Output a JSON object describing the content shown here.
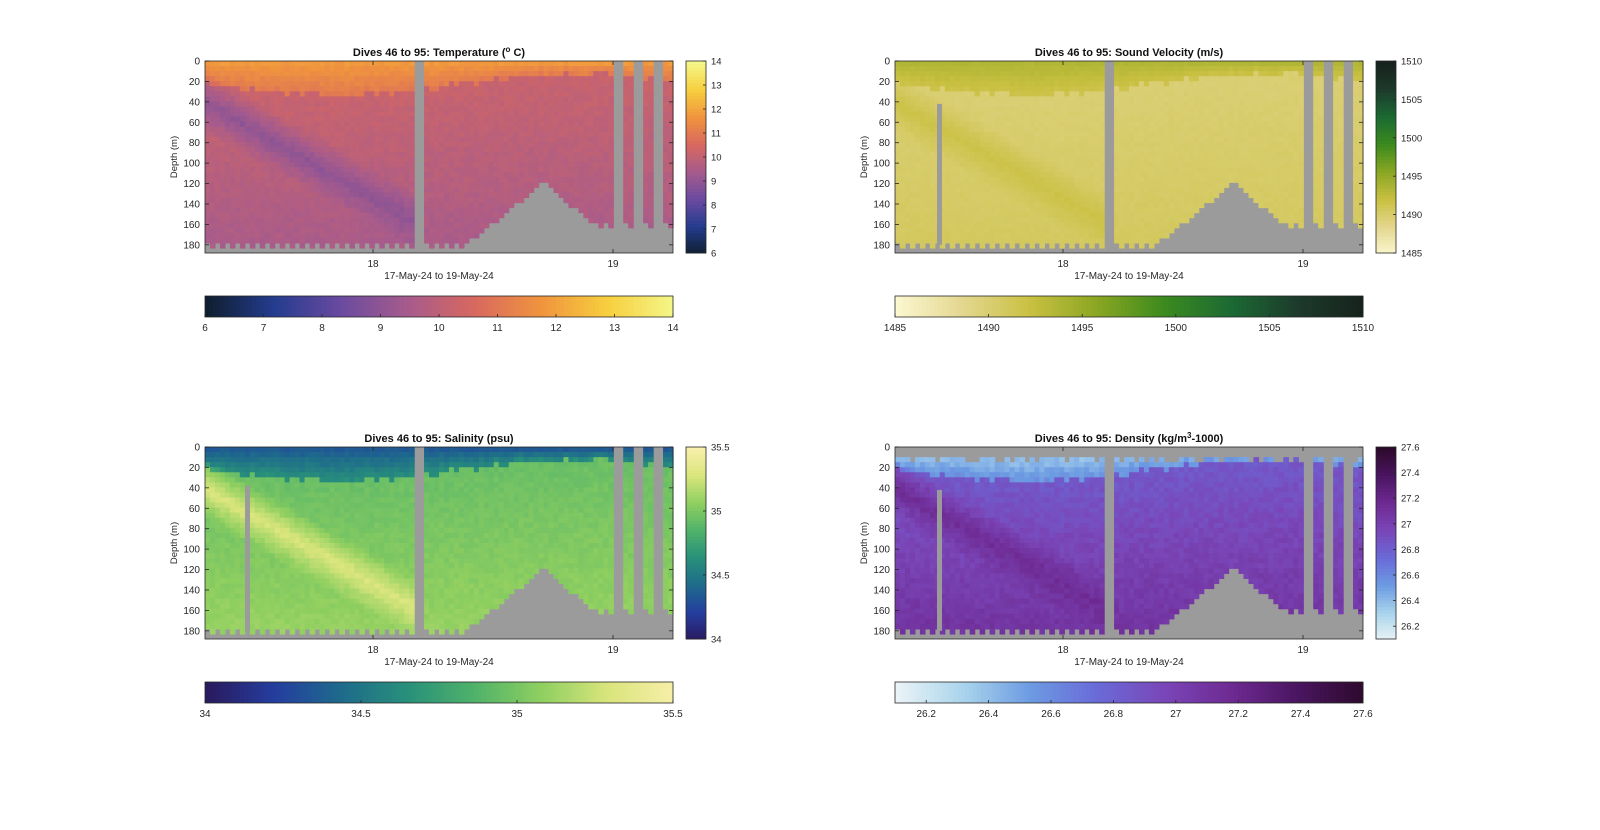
{
  "chart_data": [
    {
      "type": "heatmap",
      "title": "Dives 46 to 95: Temperature (",
      "title_sup": "o",
      "title_tail": " C)",
      "xlabel": "17-May-24 to 19-May-24",
      "ylabel": "Depth (m)",
      "x_ticks": [
        "18",
        "19"
      ],
      "x_tick_days": [
        18,
        19
      ],
      "xlim_days": [
        17.3,
        19.25
      ],
      "ylim": [
        0,
        188
      ],
      "y_ticks": [
        0,
        20,
        40,
        60,
        80,
        100,
        120,
        140,
        160,
        180
      ],
      "colorbar_ticks": [
        6,
        7,
        8,
        9,
        10,
        11,
        12,
        13,
        14
      ],
      "colorbar_range": [
        6,
        14
      ],
      "colormap": [
        "#0f1e2f",
        "#233c8e",
        "#6a4aa0",
        "#a65b8c",
        "#d8685f",
        "#f0943e",
        "#f7cf3e",
        "#f4f78a"
      ],
      "profile": {
        "surface": 11.8,
        "mid": 10.2,
        "deep": 9.5,
        "diag": 9.0
      },
      "horizontal_colorbar_ticks": [
        "6",
        "7",
        "8",
        "9",
        "10",
        "11",
        "12",
        "13",
        "14"
      ]
    },
    {
      "type": "heatmap",
      "title": "Dives 46 to 95: Sound Velocity (m/s)",
      "title_sup": "",
      "title_tail": "",
      "xlabel": "17-May-24 to 19-May-24",
      "ylabel": "Depth (m)",
      "x_ticks": [
        "18",
        "19"
      ],
      "x_tick_days": [
        18,
        19
      ],
      "xlim_days": [
        17.3,
        19.25
      ],
      "ylim": [
        0,
        188
      ],
      "y_ticks": [
        0,
        20,
        40,
        60,
        80,
        100,
        120,
        140,
        160,
        180
      ],
      "colorbar_ticks": [
        1485,
        1490,
        1495,
        1500,
        1505,
        1510
      ],
      "colorbar_range": [
        1485,
        1510
      ],
      "colormap": [
        "#fbf7cf",
        "#e3d68e",
        "#c9c041",
        "#8aa623",
        "#3c8a1e",
        "#1b6a33",
        "#1d3a2c",
        "#16221c"
      ],
      "profile": {
        "surface": 1493.5,
        "mid": 1489.8,
        "deep": 1490.8,
        "diag": 1491.8
      },
      "horizontal_colorbar_ticks": [
        "1485",
        "1490",
        "1495",
        "1500",
        "1505",
        "1510"
      ]
    },
    {
      "type": "heatmap",
      "title": "Dives 46 to 95: Salinity (psu)",
      "title_sup": "",
      "title_tail": "",
      "xlabel": "17-May-24 to 19-May-24",
      "ylabel": "Depth (m)",
      "x_ticks": [
        "18",
        "19"
      ],
      "x_tick_days": [
        18,
        19
      ],
      "xlim_days": [
        17.3,
        19.25
      ],
      "ylim": [
        0,
        188
      ],
      "y_ticks": [
        0,
        20,
        40,
        60,
        80,
        100,
        120,
        140,
        160,
        180
      ],
      "colorbar_ticks": [
        34,
        34.5,
        35,
        35.5
      ],
      "colorbar_range": [
        34,
        35.5
      ],
      "colormap": [
        "#2a1a5e",
        "#243d9e",
        "#1e6a8c",
        "#28907a",
        "#4fb26a",
        "#8fcf60",
        "#d9e57c",
        "#f8efaa"
      ],
      "profile": {
        "surface": 34.35,
        "mid": 34.95,
        "deep": 35.1,
        "diag": 35.3
      },
      "horizontal_colorbar_ticks": [
        "34",
        "34.5",
        "35",
        "35.5"
      ]
    },
    {
      "type": "heatmap",
      "title": "Dives 46 to 95: Density (kg/m",
      "title_sup": "3",
      "title_tail": "-1000)",
      "xlabel": "17-May-24 to 19-May-24",
      "ylabel": "Depth (m)",
      "x_ticks": [
        "18",
        "19"
      ],
      "x_tick_days": [
        18,
        19
      ],
      "xlim_days": [
        17.3,
        19.25
      ],
      "ylim": [
        0,
        188
      ],
      "y_ticks": [
        0,
        20,
        40,
        60,
        80,
        100,
        120,
        140,
        160,
        180
      ],
      "colorbar_ticks": [
        26.2,
        26.4,
        26.6,
        26.8,
        27,
        27.2,
        27.4,
        27.6
      ],
      "colorbar_range": [
        26.1,
        27.6
      ],
      "colormap": [
        "#eaf4f6",
        "#a9d3ec",
        "#6c9be2",
        "#6a6ad8",
        "#7a46b8",
        "#6e2a92",
        "#4a1560",
        "#2c0a2c"
      ],
      "profile": {
        "surface": 26.3,
        "mid": 26.85,
        "deep": 27.1,
        "diag": 27.15
      },
      "horizontal_colorbar_ticks": [
        "26.2",
        "26.4",
        "26.6",
        "26.8",
        "27",
        "27.2",
        "27.4",
        "27.6"
      ]
    }
  ]
}
